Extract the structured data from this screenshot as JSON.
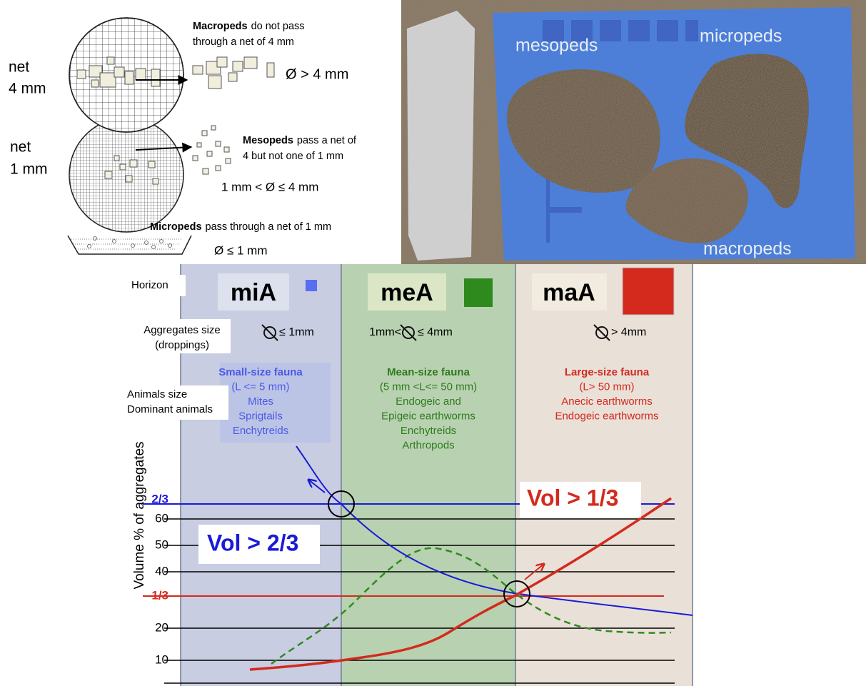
{
  "sieve_diagram": {
    "net_4mm": [
      "net",
      "4 mm"
    ],
    "net_1mm": [
      "net",
      "1 mm"
    ],
    "macropeds": {
      "term": "Macropeds",
      "text": "do not pass",
      "line2": "through a net of 4 mm",
      "size": "Ø > 4 mm"
    },
    "mesopeds": {
      "term": "Mesopeds",
      "text": "pass a net of",
      "line2": "4 but not one of 1 mm",
      "size": "1 mm < Ø ≤ 4 mm"
    },
    "micropeds": {
      "term": "Micropeds",
      "text": "pass through a net of 1 mm",
      "size": "Ø ≤ 1 mm"
    }
  },
  "photo": {
    "labels": [
      "mesopeds",
      "micropeds",
      "macropeds"
    ]
  },
  "chart": {
    "row_labels": {
      "horizon": "Horizon",
      "aggregates": [
        "Aggregates size",
        "(droppings)"
      ],
      "animals": [
        "Animals size",
        "Dominant animals"
      ]
    },
    "columns": [
      {
        "horizon": "miA",
        "size": "≤ 1mm",
        "fauna": [
          "Small-size fauna",
          "(L <= 5 mm)",
          "Mites",
          "Sprigtails",
          "Enchytreids"
        ]
      },
      {
        "horizon": "meA",
        "size_prefix": "1mm<",
        "size": "≤ 4mm",
        "fauna": [
          "Mean-size fauna",
          "(5 mm <L<= 50 mm)",
          "Endogeic and",
          "Epigeic earthworms",
          "Enchytreids",
          "Arthropods"
        ]
      },
      {
        "horizon": "maA",
        "size": "> 4mm",
        "fauna": [
          "Large-size fauna",
          "(L> 50 mm)",
          "Anecic earthworms",
          "Endogeic earthworms"
        ]
      }
    ],
    "y_axis_label": "Volume % of  aggregates",
    "y_ticks": [
      "10",
      "20",
      "1/3",
      "40",
      "50",
      "60",
      "2/3"
    ],
    "annotations": [
      "Vol > 2/3",
      "Vol > 1/3"
    ]
  }
}
